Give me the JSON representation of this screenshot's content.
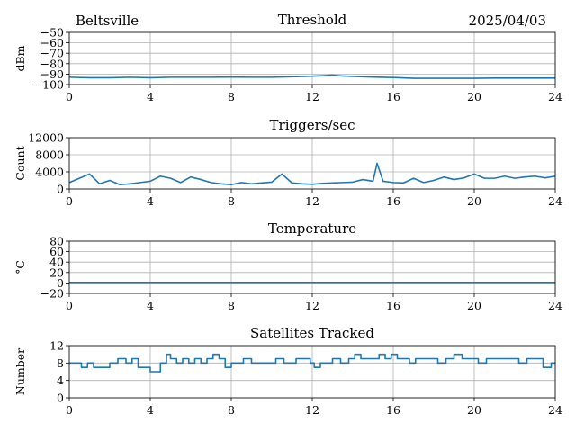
{
  "header": {
    "location": "Beltsville",
    "date": "2025/04/03"
  },
  "colors": {
    "series": "#1f77b4",
    "grid": "#b0b0b0"
  },
  "chart_data": [
    {
      "type": "line",
      "title": "Threshold",
      "xlabel": "",
      "ylabel": "dBm",
      "xlim": [
        0,
        24
      ],
      "ylim": [
        -100,
        -50
      ],
      "xticks": [
        0,
        4,
        8,
        12,
        16,
        20,
        24
      ],
      "yticks": [
        -50,
        -60,
        -70,
        -80,
        -90,
        -100
      ],
      "ytick_labels": [
        "−50",
        "−60",
        "−70",
        "−80",
        "−90",
        "−100"
      ],
      "grid": true,
      "x": [
        0,
        1,
        2,
        3,
        4,
        5,
        6,
        7,
        8,
        9,
        10,
        11,
        12,
        12.5,
        13,
        13.5,
        14,
        15,
        16,
        17,
        18,
        19,
        20,
        21,
        22,
        23,
        24
      ],
      "y": [
        -93,
        -93.5,
        -93.5,
        -93,
        -93.5,
        -93,
        -93,
        -93,
        -92.8,
        -93,
        -93,
        -92.5,
        -92,
        -91.5,
        -91,
        -91.8,
        -92.2,
        -92.8,
        -93.3,
        -94,
        -94,
        -94,
        -94,
        -93.8,
        -93.8,
        -93.8,
        -93.8
      ]
    },
    {
      "type": "line",
      "title": "Triggers/sec",
      "xlabel": "",
      "ylabel": "Count",
      "xlim": [
        0,
        24
      ],
      "ylim": [
        0,
        12000
      ],
      "xticks": [
        0,
        4,
        8,
        12,
        16,
        20,
        24
      ],
      "yticks": [
        0,
        4000,
        8000,
        12000
      ],
      "ytick_labels": [
        "0",
        "4000",
        "8000",
        "12000"
      ],
      "grid": true,
      "x": [
        0,
        0.5,
        1,
        1.5,
        2,
        2.5,
        3,
        3.5,
        4,
        4.5,
        5,
        5.5,
        6,
        6.5,
        7,
        7.5,
        8,
        8.5,
        9,
        9.5,
        10,
        10.5,
        11,
        11.5,
        12,
        12.5,
        13,
        13.5,
        14,
        14.5,
        15,
        15.2,
        15.5,
        16,
        16.5,
        17,
        17.5,
        18,
        18.5,
        19,
        19.5,
        20,
        20.5,
        21,
        21.5,
        22,
        22.5,
        23,
        23.5,
        24
      ],
      "y": [
        1500,
        2500,
        3500,
        1200,
        2000,
        1000,
        1200,
        1500,
        1800,
        3000,
        2500,
        1500,
        2800,
        2200,
        1500,
        1200,
        1000,
        1500,
        1200,
        1400,
        1600,
        3500,
        1400,
        1200,
        1100,
        1300,
        1400,
        1500,
        1600,
        2200,
        1800,
        6000,
        1800,
        1500,
        1400,
        2500,
        1500,
        2000,
        2800,
        2200,
        2600,
        3500,
        2500,
        2500,
        3000,
        2500,
        2800,
        3000,
        2600,
        3000
      ]
    },
    {
      "type": "line",
      "title": "Temperature",
      "xlabel": "",
      "ylabel": "°C",
      "xlim": [
        0,
        24
      ],
      "ylim": [
        -20,
        80
      ],
      "xticks": [
        0,
        4,
        8,
        12,
        16,
        20,
        24
      ],
      "yticks": [
        -20,
        0,
        20,
        40,
        60,
        80
      ],
      "ytick_labels": [
        "−20",
        "0",
        "20",
        "40",
        "60",
        "80"
      ],
      "grid": true,
      "x": [
        0,
        24
      ],
      "y": [
        1,
        1
      ]
    },
    {
      "type": "line",
      "title": "Satellites Tracked",
      "xlabel": "",
      "ylabel": "Number",
      "xlim": [
        0,
        24
      ],
      "ylim": [
        0,
        12
      ],
      "xticks": [
        0,
        4,
        8,
        12,
        16,
        20,
        24
      ],
      "yticks": [
        0,
        4,
        8,
        12
      ],
      "ytick_labels": [
        "0",
        "4",
        "8",
        "12"
      ],
      "grid": true,
      "step": true,
      "x": [
        0,
        0.3,
        0.6,
        0.9,
        1.2,
        1.6,
        2.0,
        2.4,
        2.8,
        3.1,
        3.4,
        3.6,
        4.0,
        4.3,
        4.5,
        4.8,
        5.0,
        5.3,
        5.6,
        5.9,
        6.2,
        6.5,
        6.8,
        7.1,
        7.4,
        7.7,
        8.0,
        8.3,
        8.6,
        9.0,
        9.4,
        9.8,
        10.2,
        10.6,
        10.9,
        11.2,
        11.6,
        11.9,
        12.1,
        12.4,
        12.7,
        13.0,
        13.4,
        13.8,
        14.1,
        14.4,
        14.7,
        15.0,
        15.3,
        15.6,
        15.9,
        16.2,
        16.5,
        16.8,
        17.1,
        17.5,
        17.8,
        18.2,
        18.6,
        19.0,
        19.4,
        19.8,
        20.2,
        20.6,
        21.0,
        21.4,
        21.8,
        22.2,
        22.6,
        23.0,
        23.4,
        23.8,
        24
      ],
      "y": [
        8,
        8,
        7,
        8,
        7,
        7,
        8,
        9,
        8,
        9,
        7,
        7,
        6,
        6,
        8,
        10,
        9,
        8,
        9,
        8,
        9,
        8,
        9,
        10,
        9,
        7,
        8,
        8,
        9,
        8,
        8,
        8,
        9,
        8,
        8,
        9,
        9,
        8,
        7,
        8,
        8,
        9,
        8,
        9,
        10,
        9,
        9,
        9,
        10,
        9,
        10,
        9,
        9,
        8,
        9,
        9,
        9,
        8,
        9,
        10,
        9,
        9,
        8,
        9,
        9,
        9,
        9,
        8,
        9,
        9,
        7,
        8,
        8
      ]
    }
  ]
}
